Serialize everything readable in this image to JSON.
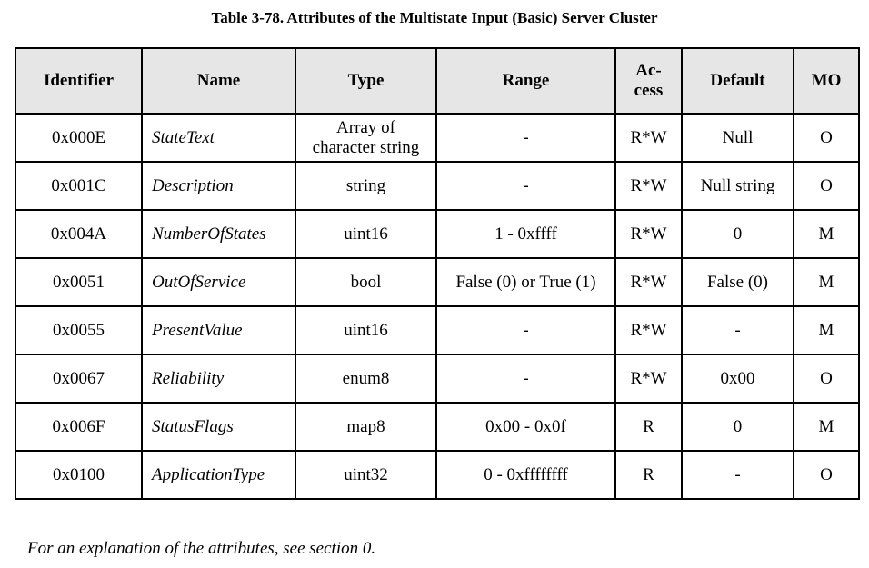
{
  "caption": "Table 3-78. Attributes of the Multistate Input (Basic) Server Cluster",
  "headers": {
    "identifier": "Identifier",
    "name": "Name",
    "type": "Type",
    "range": "Range",
    "access_line1": "Ac-",
    "access_line2": "cess",
    "default": "Default",
    "mo": "MO"
  },
  "rows": [
    {
      "identifier": "0x000E",
      "name": "StateText",
      "type_line1": "Array of",
      "type_line2": "character string",
      "range": "-",
      "access": "R*W",
      "default": "Null",
      "mo": "O"
    },
    {
      "identifier": "0x001C",
      "name": "Description",
      "type": "string",
      "range": "-",
      "access": "R*W",
      "default": "Null string",
      "mo": "O"
    },
    {
      "identifier": "0x004A",
      "name": "NumberOfStates",
      "type": "uint16",
      "range": "1 - 0xffff",
      "access": "R*W",
      "default": "0",
      "mo": "M"
    },
    {
      "identifier": "0x0051",
      "name": "OutOfService",
      "type": "bool",
      "range": "False (0) or True (1)",
      "access": "R*W",
      "default": "False (0)",
      "mo": "M"
    },
    {
      "identifier": "0x0055",
      "name": "PresentValue",
      "type": "uint16",
      "range": "-",
      "access": "R*W",
      "default": "-",
      "mo": "M"
    },
    {
      "identifier": "0x0067",
      "name": "Reliability",
      "type": "enum8",
      "range": "-",
      "access": "R*W",
      "default": "0x00",
      "mo": "O"
    },
    {
      "identifier": "0x006F",
      "name": "StatusFlags",
      "type": "map8",
      "range": "0x00 - 0x0f",
      "access": "R",
      "default": "0",
      "mo": "M"
    },
    {
      "identifier": "0x0100",
      "name": "ApplicationType",
      "type": "uint32",
      "range": "0 - 0xffffffff",
      "access": "R",
      "default": "-",
      "mo": "O"
    }
  ],
  "note": "For an explanation of the attributes, see section 0."
}
